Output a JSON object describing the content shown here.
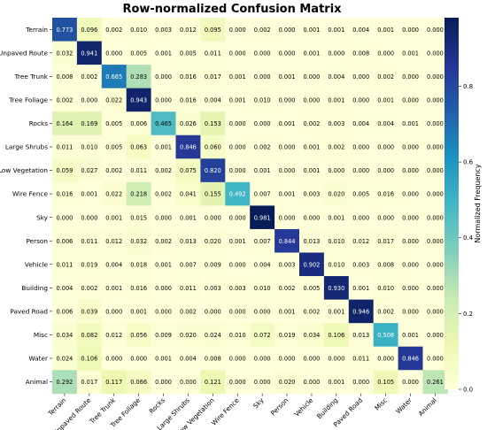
{
  "chart_data": {
    "type": "heatmap",
    "title": "Row-normalized Confusion Matrix",
    "row_labels": [
      "Terrain",
      "Unpaved Route",
      "Tree Trunk",
      "Tree Foliage",
      "Rocks",
      "Large Shrubs",
      "Low Vegetation",
      "Wire Fence",
      "Sky",
      "Person",
      "Vehicle",
      "Building",
      "Paved Road",
      "Misc",
      "Water",
      "Animal"
    ],
    "col_labels": [
      "Terrain",
      "Unpaved Route",
      "Tree Trunk",
      "Tree Foliage",
      "Rocks",
      "Large Shrubs",
      "Low Vegetation",
      "Wire Fence",
      "Sky",
      "Person",
      "Vehicle",
      "Building",
      "Paved Road",
      "Misc",
      "Water",
      "Animal"
    ],
    "values": [
      [
        "0.773",
        "0.096",
        "0.002",
        "0.010",
        "0.003",
        "0.012",
        "0.095",
        "0.000",
        "0.002",
        "0.000",
        "0.001",
        "0.001",
        "0.004",
        "0.001",
        "0.000",
        "0.000"
      ],
      [
        "0.032",
        "0.941",
        "0.000",
        "0.005",
        "0.001",
        "0.005",
        "0.011",
        "0.000",
        "0.000",
        "0.000",
        "0.001",
        "0.000",
        "0.008",
        "0.000",
        "0.001",
        "0.000"
      ],
      [
        "0.008",
        "0.002",
        "0.665",
        "0.283",
        "0.000",
        "0.016",
        "0.017",
        "0.001",
        "0.000",
        "0.001",
        "0.000",
        "0.004",
        "0.000",
        "0.002",
        "0.000",
        "0.000"
      ],
      [
        "0.002",
        "0.000",
        "0.022",
        "0.943",
        "0.000",
        "0.016",
        "0.004",
        "0.001",
        "0.010",
        "0.000",
        "0.000",
        "0.001",
        "0.000",
        "0.001",
        "0.000",
        "0.000"
      ],
      [
        "0.164",
        "0.169",
        "0.005",
        "0.006",
        "0.465",
        "0.026",
        "0.153",
        "0.000",
        "0.000",
        "0.001",
        "0.002",
        "0.003",
        "0.004",
        "0.004",
        "0.001",
        "0.000"
      ],
      [
        "0.011",
        "0.010",
        "0.005",
        "0.063",
        "0.001",
        "0.846",
        "0.060",
        "0.000",
        "0.002",
        "0.000",
        "0.001",
        "0.002",
        "0.000",
        "0.000",
        "0.000",
        "0.000"
      ],
      [
        "0.059",
        "0.027",
        "0.002",
        "0.011",
        "0.002",
        "0.075",
        "0.820",
        "0.000",
        "0.001",
        "0.000",
        "0.001",
        "0.000",
        "0.000",
        "0.000",
        "0.000",
        "0.000"
      ],
      [
        "0.016",
        "0.001",
        "0.022",
        "0.218",
        "0.002",
        "0.041",
        "0.155",
        "0.492",
        "0.007",
        "0.001",
        "0.003",
        "0.020",
        "0.005",
        "0.016",
        "0.000",
        "0.000"
      ],
      [
        "0.000",
        "0.000",
        "0.001",
        "0.015",
        "0.000",
        "0.001",
        "0.000",
        "0.000",
        "0.981",
        "0.000",
        "0.000",
        "0.001",
        "0.000",
        "0.000",
        "0.000",
        "0.000"
      ],
      [
        "0.006",
        "0.011",
        "0.012",
        "0.032",
        "0.002",
        "0.013",
        "0.020",
        "0.001",
        "0.007",
        "0.844",
        "0.013",
        "0.010",
        "0.012",
        "0.017",
        "0.000",
        "0.000"
      ],
      [
        "0.011",
        "0.019",
        "0.004",
        "0.018",
        "0.001",
        "0.007",
        "0.009",
        "0.000",
        "0.004",
        "0.003",
        "0.902",
        "0.010",
        "0.003",
        "0.008",
        "0.000",
        "0.000"
      ],
      [
        "0.004",
        "0.002",
        "0.001",
        "0.016",
        "0.000",
        "0.011",
        "0.003",
        "0.003",
        "0.010",
        "0.002",
        "0.005",
        "0.930",
        "0.001",
        "0.010",
        "0.000",
        "0.000"
      ],
      [
        "0.006",
        "0.039",
        "0.000",
        "0.001",
        "0.000",
        "0.002",
        "0.000",
        "0.000",
        "0.000",
        "0.001",
        "0.002",
        "0.001",
        "0.946",
        "0.002",
        "0.000",
        "0.000"
      ],
      [
        "0.034",
        "0.082",
        "0.012",
        "0.056",
        "0.009",
        "0.020",
        "0.024",
        "0.010",
        "0.072",
        "0.019",
        "0.034",
        "0.106",
        "0.013",
        "0.508",
        "0.001",
        "0.000"
      ],
      [
        "0.024",
        "0.106",
        "0.000",
        "0.000",
        "0.001",
        "0.004",
        "0.008",
        "0.000",
        "0.000",
        "0.000",
        "0.000",
        "0.000",
        "0.011",
        "0.000",
        "0.846",
        "0.000"
      ],
      [
        "0.292",
        "0.017",
        "0.117",
        "0.066",
        "0.000",
        "0.000",
        "0.121",
        "0.000",
        "0.000",
        "0.020",
        "0.000",
        "0.001",
        "0.000",
        "0.105",
        "0.000",
        "0.261"
      ]
    ],
    "colorbar": {
      "label": "Normalized Frequency",
      "ticks": [
        "0.0",
        "0.2",
        "0.4",
        "0.6",
        "0.8"
      ],
      "range": [
        0,
        0.981
      ]
    },
    "colormap": {
      "name": "YlGnBu",
      "stops": [
        "#ffffd9",
        "#edf8b1",
        "#c7e9b4",
        "#7fcdbb",
        "#41b6c4",
        "#1d91c0",
        "#225ea8",
        "#253494",
        "#081d58"
      ]
    }
  }
}
